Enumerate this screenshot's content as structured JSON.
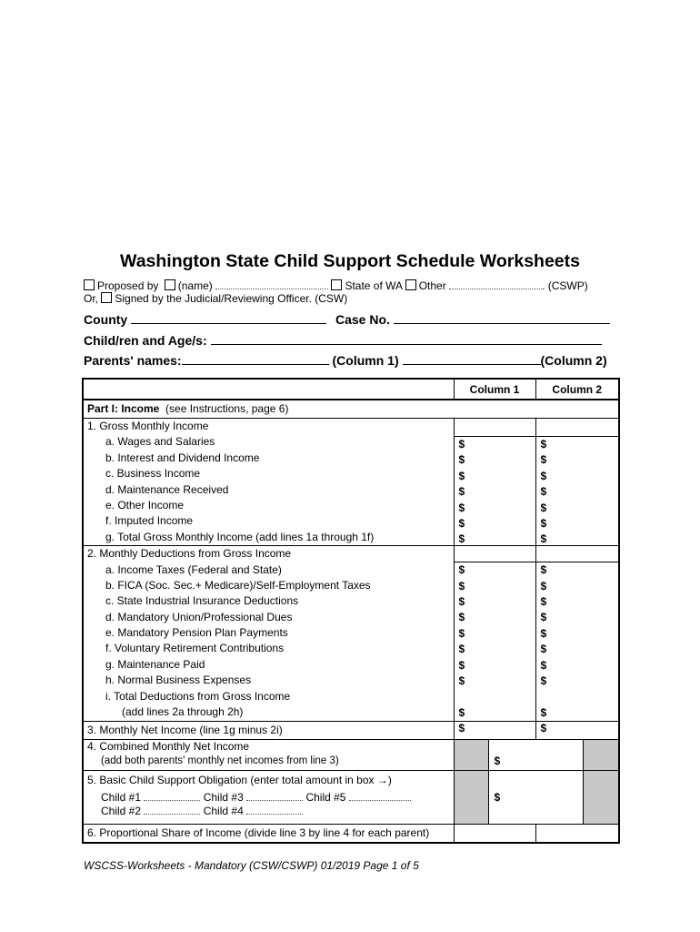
{
  "title": "Washington State Child Support Schedule Worksheets",
  "options": {
    "proposed_by": "Proposed by",
    "name": "(name)",
    "state": "State of WA",
    "other": "Other",
    "cswp": ". (CSWP)",
    "or": "Or,",
    "signed": "Signed by the Judicial/Reviewing Officer. (CSW)"
  },
  "fields": {
    "county": "County",
    "case_no": "Case No.",
    "children": "Child/ren and Age/s:",
    "parents": "Parents' names:",
    "column1": "(Column 1)",
    "column2": "(Column 2)"
  },
  "table": {
    "col1": "Column 1",
    "col2": "Column 2",
    "part1": "Part I:  Income",
    "part1_note": "(see Instructions, page 6)",
    "group1": {
      "title": "1. Gross Monthly Income",
      "items": [
        "a. Wages and Salaries",
        "b. Interest and Dividend Income",
        "c. Business Income",
        "d. Maintenance Received",
        "e. Other Income",
        "f.  Imputed Income",
        "g. Total Gross Monthly Income (add lines 1a through 1f)"
      ]
    },
    "group2": {
      "title": "2. Monthly Deductions from Gross Income",
      "items": [
        "a. Income Taxes  (Federal and State)",
        "b. FICA (Soc. Sec.+ Medicare)/Self-Employment Taxes",
        "c. State Industrial Insurance Deductions",
        "d. Mandatory Union/Professional Dues",
        "e. Mandatory Pension Plan Payments",
        "f.  Voluntary Retirement Contributions",
        "g. Maintenance Paid",
        "h. Normal Business Expenses",
        "i.  Total Deductions from Gross Income"
      ],
      "i_note": "(add lines 2a through 2h)"
    },
    "row3": "3. Monthly Net Income  (line 1g minus 2i)",
    "row4": "4. Combined Monthly Net Income",
    "row4_note": "(add both parents' monthly net incomes from line 3)",
    "row5": "5. Basic Child Support Obligation  (enter total amount in box →)",
    "children": [
      "Child #1",
      "Child #2",
      "Child #3",
      "Child #4",
      "Child #5"
    ],
    "row6": "6. Proportional Share of Income (divide line 3 by line 4 for each parent)",
    "dollar": "$"
  },
  "footer": "WSCSS-Worksheets - Mandatory (CSW/CSWP) 01/2019 Page 1 of 5"
}
